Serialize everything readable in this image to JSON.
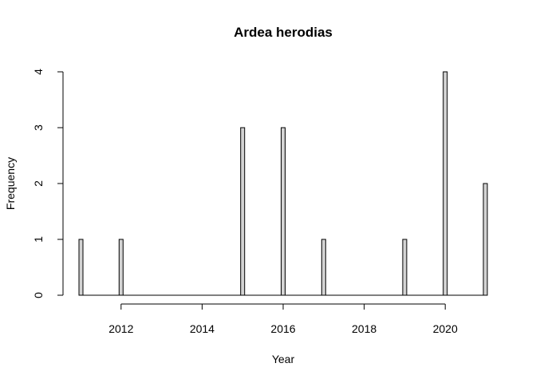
{
  "chart_data": {
    "type": "bar",
    "title": "Ardea herodias",
    "xlabel": "Year",
    "ylabel": "Frequency",
    "x": [
      2011,
      2012,
      2015,
      2016,
      2017,
      2019,
      2020,
      2021
    ],
    "values": [
      1,
      1,
      3,
      3,
      1,
      1,
      4,
      2
    ],
    "xlim": [
      2011,
      2021
    ],
    "ylim": [
      0,
      4
    ],
    "xticks": [
      2012,
      2014,
      2016,
      2018,
      2020
    ],
    "yticks": [
      0,
      1,
      2,
      3,
      4
    ],
    "bar_color": "#d3d3d3",
    "grid": false
  }
}
